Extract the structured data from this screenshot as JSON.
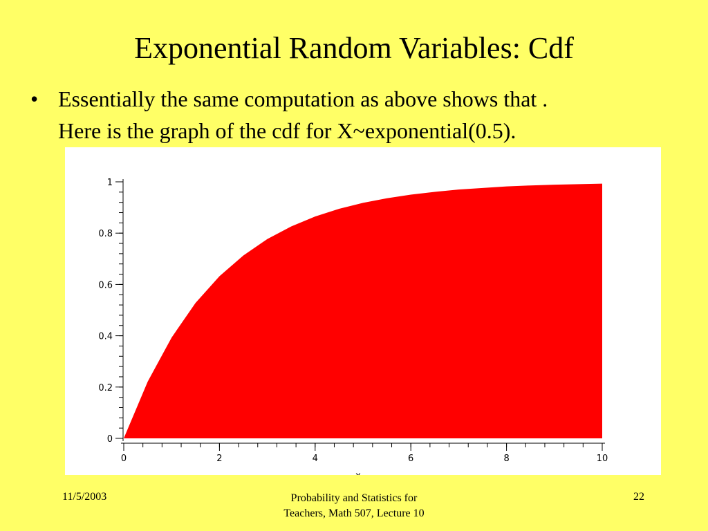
{
  "slide": {
    "title": "Exponential Random Variables: Cdf",
    "bullet": {
      "marker": "•",
      "line1": "Essentially the same computation as above shows that .",
      "line2": "Here is the graph of the cdf for X~exponential(0.5)."
    }
  },
  "footer": {
    "date": "11/5/2003",
    "course_line1": "Probability and Statistics for",
    "course_line2": "Teachers, Math 507, Lecture 10",
    "page_number": "22"
  },
  "chart_data": {
    "type": "area",
    "title": "",
    "xlabel": "x",
    "ylabel": "",
    "xlim": [
      0,
      10
    ],
    "ylim": [
      0,
      1
    ],
    "x_ticks": [
      0,
      2,
      4,
      6,
      8,
      10
    ],
    "x_tick_labels": [
      "0",
      "2",
      "4",
      "6",
      "8",
      "10"
    ],
    "y_ticks": [
      0,
      0.2,
      0.4,
      0.6,
      0.8,
      1
    ],
    "y_tick_labels": [
      "0",
      "0.2",
      "0.4",
      "0.6",
      "0.8",
      "1"
    ],
    "grid": false,
    "legend": "none",
    "fill_color": "#FF0000",
    "background_color": "#FFFFFF",
    "series": [
      {
        "x": [
          0,
          0.5,
          1,
          1.5,
          2,
          2.5,
          3,
          3.5,
          4,
          4.5,
          5,
          5.5,
          6,
          6.5,
          7,
          7.5,
          8,
          8.5,
          9,
          9.5,
          10
        ],
        "y": [
          0,
          0.221,
          0.393,
          0.528,
          0.632,
          0.713,
          0.777,
          0.826,
          0.865,
          0.895,
          0.918,
          0.936,
          0.95,
          0.961,
          0.97,
          0.976,
          0.982,
          0.986,
          0.989,
          0.991,
          0.993
        ]
      }
    ]
  }
}
